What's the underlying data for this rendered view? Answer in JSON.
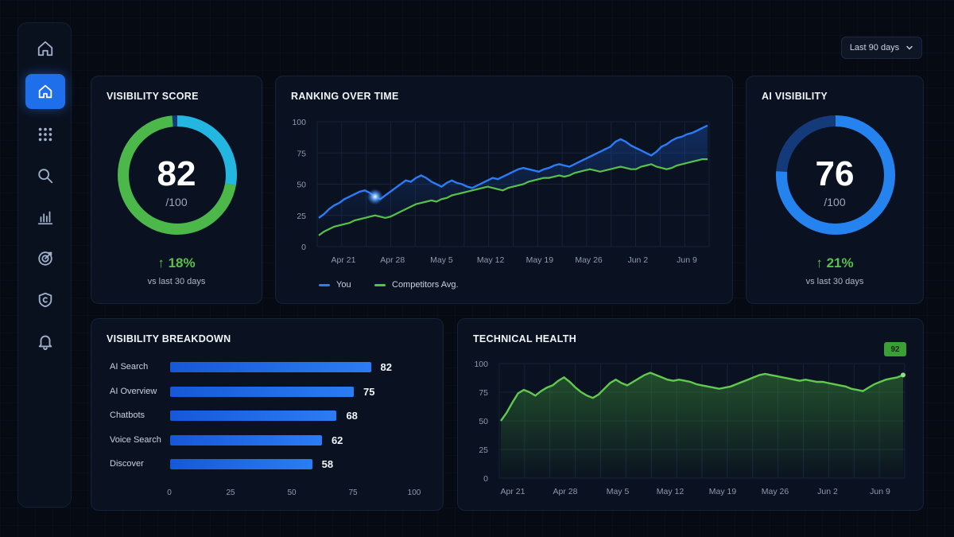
{
  "header": {
    "range_select": "Last 90 days"
  },
  "sidebar": {
    "items": [
      {
        "name": "home-outline",
        "icon": "home-icon",
        "active": false
      },
      {
        "name": "home",
        "icon": "home-icon",
        "active": true
      },
      {
        "name": "apps",
        "icon": "grid-icon",
        "active": false
      },
      {
        "name": "search",
        "icon": "search-icon",
        "active": false
      },
      {
        "name": "analytics",
        "icon": "bar-chart-icon",
        "active": false
      },
      {
        "name": "targeting",
        "icon": "target-icon",
        "active": false
      },
      {
        "name": "security",
        "icon": "shield-icon",
        "active": false
      },
      {
        "name": "notifications",
        "icon": "bell-icon",
        "active": false
      }
    ]
  },
  "visibility_score": {
    "title": "VISIBILITY SCORE",
    "value": "82",
    "max": "/100",
    "delta": "↑ 18%",
    "delta_caption": "vs last 30 days",
    "score_fraction": 0.82
  },
  "ai_visibility": {
    "title": "AI VISIBILITY",
    "value": "76",
    "max": "/100",
    "delta": "↑ 21%",
    "delta_caption": "vs last 30 days",
    "score_fraction": 0.76
  },
  "ranking": {
    "title": "RANKING OVER TIME",
    "legend": {
      "you": "You",
      "competitors": "Competitors Avg."
    }
  },
  "breakdown": {
    "title": "VISIBILITY BREAKDOWN"
  },
  "technical_health": {
    "title": "TECHNICAL HEALTH",
    "badge": "92"
  },
  "colors": {
    "accent_blue": "#2b7cf5",
    "accent_green": "#56c24a",
    "cyan": "#22b6e0",
    "card_bg": "#0a1120"
  },
  "chart_data": [
    {
      "type": "line",
      "title": "RANKING OVER TIME",
      "x_ticks": [
        "Apr 21",
        "Apr 28",
        "May 5",
        "May 12",
        "May 19",
        "May 26",
        "Jun 2",
        "Jun 9"
      ],
      "ylim": [
        0,
        100
      ],
      "y_ticks": [
        0,
        25,
        50,
        75,
        100
      ],
      "grid": true,
      "legend_position": "bottom-left",
      "series": [
        {
          "name": "You",
          "color": "#2b7cf5",
          "values": [
            23,
            26,
            30,
            33,
            35,
            38,
            40,
            42,
            44,
            45,
            43,
            40,
            38,
            41,
            44,
            47,
            50,
            53,
            52,
            55,
            57,
            55,
            52,
            50,
            48,
            51,
            53,
            51,
            50,
            48,
            47,
            49,
            51,
            53,
            55,
            54,
            56,
            58,
            60,
            62,
            63,
            62,
            61,
            60,
            62,
            63,
            65,
            66,
            65,
            64,
            66,
            68,
            70,
            72,
            74,
            76,
            78,
            80,
            84,
            86,
            84,
            81,
            79,
            77,
            75,
            73,
            76,
            80,
            82,
            85,
            87,
            88,
            90,
            91,
            93,
            95,
            97
          ]
        },
        {
          "name": "Competitors Avg.",
          "color": "#56c24a",
          "values": [
            9,
            12,
            14,
            16,
            17,
            18,
            19,
            21,
            22,
            23,
            24,
            25,
            24,
            23,
            24,
            26,
            28,
            30,
            32,
            34,
            35,
            36,
            37,
            36,
            38,
            39,
            41,
            42,
            43,
            44,
            45,
            46,
            47,
            48,
            47,
            46,
            45,
            47,
            48,
            49,
            50,
            52,
            53,
            54,
            55,
            55,
            56,
            57,
            56,
            57,
            59,
            60,
            61,
            62,
            61,
            60,
            61,
            62,
            63,
            64,
            63,
            62,
            62,
            64,
            65,
            66,
            64,
            63,
            62,
            63,
            65,
            66,
            67,
            68,
            69,
            70,
            70
          ]
        }
      ]
    },
    {
      "type": "bar",
      "title": "VISIBILITY BREAKDOWN",
      "orientation": "horizontal",
      "categories": [
        "AI Search",
        "AI Overview",
        "Chatbots",
        "Voice Search",
        "Discover"
      ],
      "values": [
        82,
        75,
        68,
        62,
        58
      ],
      "xlim": [
        0,
        100
      ],
      "x_ticks": [
        0,
        25,
        50,
        75,
        100
      ]
    },
    {
      "type": "area",
      "title": "TECHNICAL HEALTH",
      "x_ticks": [
        "Apr 21",
        "Apr 28",
        "May 5",
        "May 12",
        "May 19",
        "May 26",
        "Jun 2",
        "Jun 9"
      ],
      "ylim": [
        0,
        100
      ],
      "y_ticks": [
        0,
        25,
        50,
        75,
        100
      ],
      "grid": true,
      "series": [
        {
          "name": "",
          "color": "#56c24a",
          "values": [
            50,
            57,
            66,
            74,
            77,
            75,
            72,
            76,
            79,
            81,
            85,
            88,
            84,
            79,
            75,
            72,
            70,
            73,
            78,
            83,
            86,
            83,
            81,
            84,
            87,
            90,
            92,
            90,
            88,
            86,
            85,
            86,
            85,
            84,
            82,
            81,
            80,
            79,
            78,
            79,
            80,
            82,
            84,
            86,
            88,
            90,
            91,
            90,
            89,
            88,
            87,
            86,
            85,
            86,
            85,
            84,
            84,
            83,
            82,
            81,
            80,
            78,
            77,
            76,
            79,
            82,
            84,
            86,
            87,
            88,
            90
          ]
        }
      ]
    }
  ]
}
